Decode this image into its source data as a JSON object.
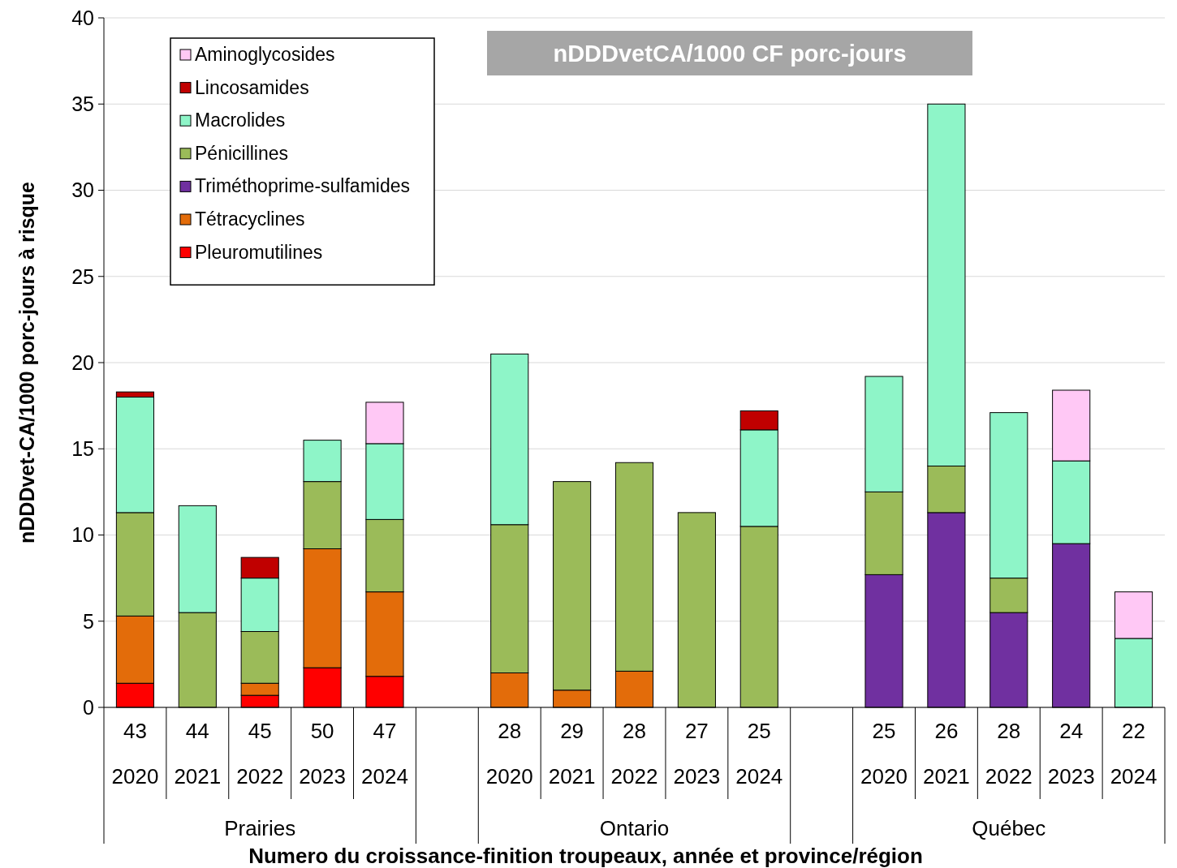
{
  "chart_data": {
    "type": "bar",
    "stacked": true,
    "title": "nDDDvetCA/1000  CF porc-jours",
    "xlabel": "Numero du croissance-finition troupeaux, année et province/région",
    "ylabel": "nDDDvet-CA/1000 porc-jours à risque",
    "categories": [
      "43\n2020",
      "44\n2021",
      "45\n2022",
      "50\n2023",
      "47\n2024",
      null,
      "28\n2020",
      "29\n2021",
      "28\n2022",
      "27\n2023",
      "25\n2024",
      null,
      "25\n2020",
      "26\n2021",
      "28\n2022",
      "24\n2023",
      "22\n2024"
    ],
    "annotations": [
      "Prairies",
      "Ontario",
      "Québec"
    ],
    "series": [
      {
        "name": "Pleuromutilines",
        "color": "#ff0000",
        "values": [
          1.4,
          null,
          0.7,
          2.3,
          1.8,
          null,
          null,
          null,
          null,
          null,
          null,
          null,
          null,
          null,
          null,
          null,
          null
        ]
      },
      {
        "name": "Tétracyclines",
        "color": "#e36c0a",
        "values": [
          3.9,
          null,
          0.7,
          6.9,
          4.9,
          null,
          2.0,
          1.0,
          2.1,
          null,
          null,
          null,
          null,
          null,
          null,
          null,
          null
        ]
      },
      {
        "name": "Triméthoprime-sulfamides",
        "color": "#7030a0",
        "values": [
          null,
          null,
          null,
          null,
          null,
          null,
          null,
          null,
          null,
          null,
          null,
          null,
          7.7,
          11.3,
          5.5,
          9.5,
          null
        ]
      },
      {
        "name": "Pénicillines",
        "color": "#9bbb59",
        "values": [
          6.0,
          5.5,
          3.0,
          3.9,
          4.2,
          null,
          8.6,
          12.1,
          12.1,
          11.3,
          10.5,
          null,
          4.8,
          2.7,
          2.0,
          null,
          null
        ]
      },
      {
        "name": "Macrolides",
        "color": "#8ef5c8",
        "values": [
          6.7,
          6.2,
          3.1,
          2.4,
          4.4,
          null,
          9.9,
          null,
          null,
          null,
          5.6,
          null,
          6.7,
          21.0,
          9.6,
          4.8,
          4.0
        ]
      },
      {
        "name": "Lincosamides",
        "color": "#c00000",
        "values": [
          0.3,
          null,
          1.2,
          null,
          null,
          null,
          null,
          null,
          null,
          null,
          1.1,
          null,
          null,
          null,
          null,
          null,
          null
        ]
      },
      {
        "name": "Aminoglycosides",
        "color": "#ffc8f5",
        "values": [
          null,
          null,
          null,
          null,
          2.4,
          null,
          null,
          null,
          null,
          null,
          null,
          null,
          null,
          null,
          null,
          4.1,
          2.7
        ]
      }
    ],
    "ylim": [
      0,
      40
    ],
    "yticks": [
      0,
      5,
      10,
      15,
      20,
      25,
      30,
      35,
      40
    ],
    "grid": "y",
    "legend": "top left"
  }
}
